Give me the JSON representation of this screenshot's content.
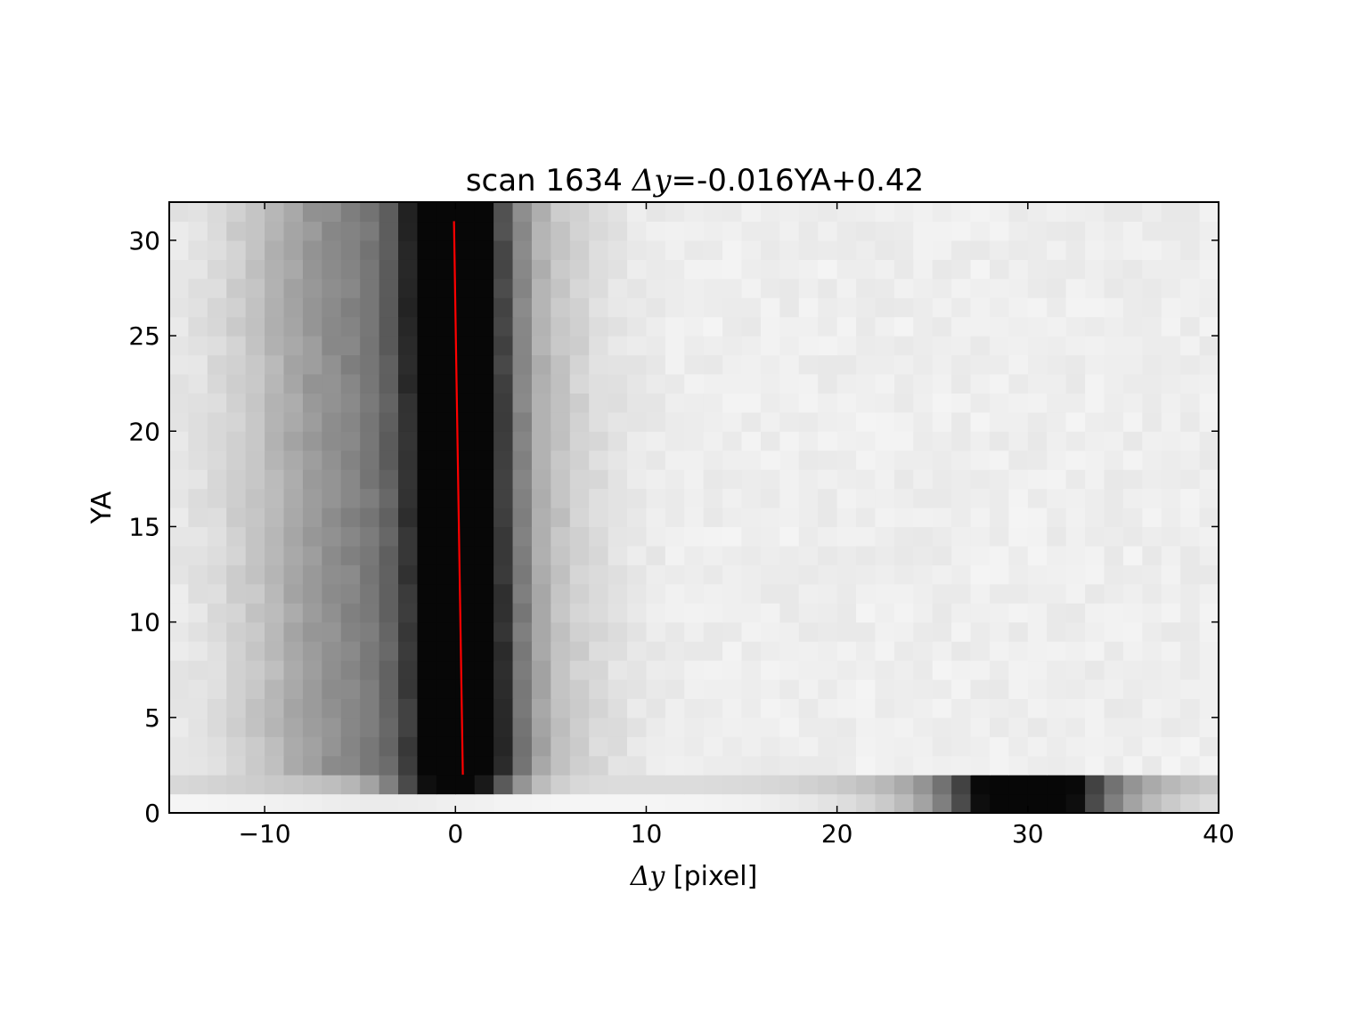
{
  "chart_data": {
    "type": "heatmap",
    "title": {
      "prefix": "scan 1634 ",
      "math": "Δy",
      "suffix": "=-0.016YA+0.42"
    },
    "xlabel": {
      "math": "Δy",
      "text": " [pixel]"
    },
    "ylabel": "YA",
    "xlim": [
      -15,
      40
    ],
    "ylim": [
      0,
      32
    ],
    "x_ticks": [
      -10,
      0,
      10,
      20,
      30,
      40
    ],
    "y_ticks": [
      0,
      5,
      10,
      15,
      20,
      25,
      30
    ],
    "x_tick_labels": [
      "−10",
      "0",
      "10",
      "20",
      "30",
      "40"
    ],
    "y_tick_labels": [
      "0",
      "5",
      "10",
      "15",
      "20",
      "25",
      "30"
    ],
    "colormap": "gray_r",
    "grid": false,
    "rows": {
      "ya_range": [
        2,
        32
      ],
      "profile": "dark vertical band centered near Δy = 0 with a gray shoulder on the negative side; light background elsewhere"
    },
    "row_1": {
      "ya_range": [
        1,
        2
      ],
      "note": "dark near Δy = 0, dark peak near Δy = 30"
    },
    "row_0": {
      "ya_range": [
        0,
        1
      ],
      "note": "light near Δy = 0, darkest near Δy = 30"
    },
    "fit_line": {
      "slope": -0.016,
      "intercept": 0.42,
      "ya_from": 2,
      "ya_to": 31,
      "color": "#ff0000"
    }
  }
}
